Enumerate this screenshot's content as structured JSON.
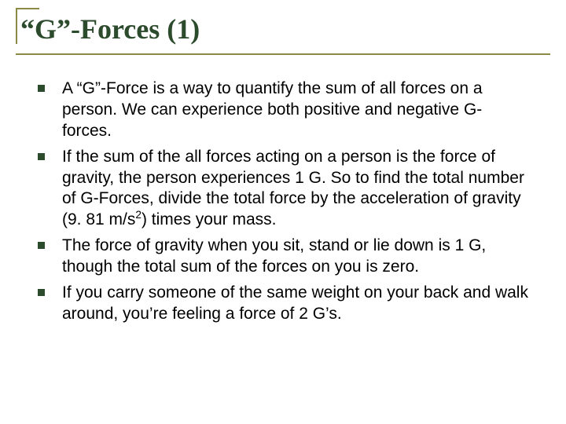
{
  "colors": {
    "accent": "#8a8a42",
    "title_text": "#2c4a2c",
    "bullet": "#2c4a2c",
    "body_text": "#000000",
    "background": "#ffffff"
  },
  "typography": {
    "title_font": "Times New Roman",
    "title_fontsize_pt": 36,
    "body_font": "Arial",
    "body_fontsize_pt": 21
  },
  "slide": {
    "title": "“G”-Forces (1)",
    "bullets": [
      {
        "text": "A “G”-Force is a way to quantify the sum of all forces on a person.  We can experience both positive and negative G-forces."
      },
      {
        "text": "If the sum of the all forces acting on a person is the force of gravity, the person experiences 1 G.  So to find the total number of G-Forces, divide the total force by the acceleration of gravity (9. 81 m/s",
        "sup": "2",
        "after": ") times your mass."
      },
      {
        "text": "The force of gravity when you sit, stand or lie down is 1 G, though the total sum of the forces on you is zero."
      },
      {
        "text": "If you carry someone of the same weight on your back and walk around, you’re feeling a force of 2 G’s."
      }
    ]
  }
}
